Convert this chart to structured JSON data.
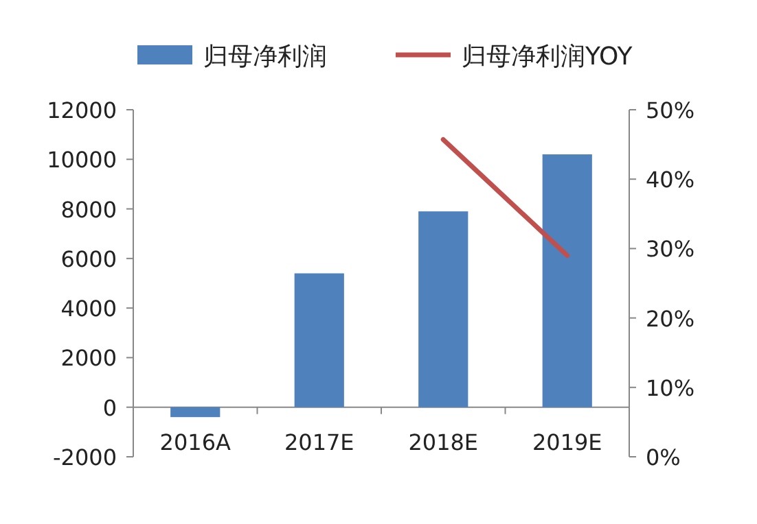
{
  "chart_data": {
    "type": "bar",
    "categories": [
      "2016A",
      "2017E",
      "2018E",
      "2019E"
    ],
    "series": [
      {
        "name": "归母净利润",
        "color": "#4f81bd",
        "values": [
          -400,
          5400,
          7900,
          10200
        ]
      },
      {
        "name": "归母净利润YOY",
        "type": "line",
        "axis": "y2",
        "color": "#c0504d",
        "values": [
          null,
          null,
          45.7,
          29
        ]
      }
    ],
    "ylim": [
      -2000,
      12000
    ],
    "yticks": [
      -2000,
      0,
      2000,
      4000,
      6000,
      8000,
      10000,
      12000
    ],
    "y2lim": [
      0,
      50
    ],
    "y2ticks": [
      {
        "value": 0,
        "label": "0%"
      },
      {
        "value": 10,
        "label": "10%"
      },
      {
        "value": 20,
        "label": "20%"
      },
      {
        "value": 30,
        "label": "30%"
      },
      {
        "value": 40,
        "label": "40%"
      },
      {
        "value": 50,
        "label": "50%"
      }
    ],
    "legend": "top",
    "grid": false
  }
}
